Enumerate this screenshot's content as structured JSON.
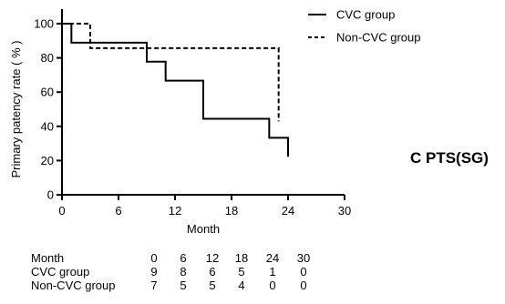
{
  "chart_data": {
    "type": "line",
    "subtype": "kaplan-meier step",
    "xlabel": "Month",
    "ylabel": "Primary patency rate ( % )",
    "xlim": [
      0,
      30
    ],
    "ylim": [
      0,
      100
    ],
    "xticks": [
      0,
      6,
      12,
      18,
      24,
      30
    ],
    "yticks": [
      0,
      20,
      40,
      60,
      80,
      100
    ],
    "grid": false,
    "legend_position": "top-right",
    "panel_label": "C  PTS(SG)",
    "series": [
      {
        "name": "CVC group",
        "style": "solid",
        "color": "#000000",
        "steps": [
          [
            0,
            100
          ],
          [
            1,
            88.9
          ],
          [
            9,
            77.8
          ],
          [
            11,
            66.7
          ],
          [
            15,
            44.4
          ],
          [
            22,
            33.3
          ],
          [
            24,
            22.2
          ]
        ]
      },
      {
        "name": "Non-CVC group",
        "style": "dashed",
        "color": "#000000",
        "steps": [
          [
            0,
            100
          ],
          [
            3,
            85.7
          ],
          [
            23,
            42.9
          ]
        ]
      }
    ],
    "risk_table": {
      "header_label": "Month",
      "times": [
        "0",
        "6",
        "12",
        "18",
        "24",
        "30"
      ],
      "rows": [
        {
          "label": "CVC group",
          "counts": [
            "9",
            "8",
            "6",
            "5",
            "1",
            "0"
          ]
        },
        {
          "label": "Non-CVC group",
          "counts": [
            "7",
            "5",
            "5",
            "4",
            "0",
            "0"
          ]
        }
      ]
    }
  }
}
